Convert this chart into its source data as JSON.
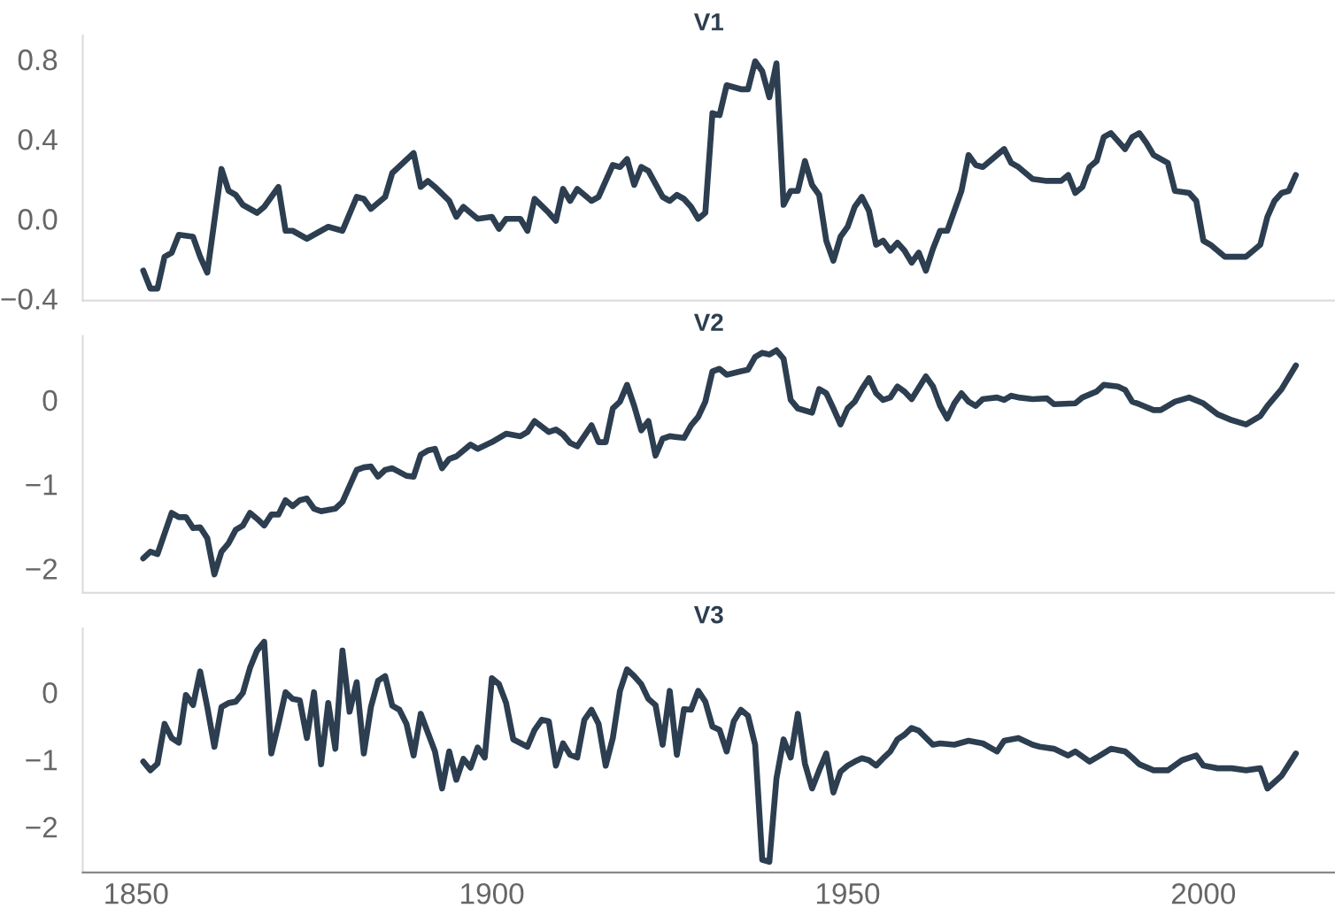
{
  "chart_data": [
    {
      "type": "line",
      "title": "V1",
      "xlim": [
        1842.5,
        2018.5
      ],
      "xticks": [
        1850,
        1900,
        1950,
        2000
      ],
      "ylim": [
        -0.41,
        0.92
      ],
      "yticks": [
        {
          "value": -0.4,
          "label": "−0.4"
        },
        {
          "value": 0,
          "label": "0.0"
        },
        {
          "value": 0.4,
          "label": "0.4"
        },
        {
          "value": 0.8,
          "label": "0.8"
        }
      ],
      "tick_labels": "y",
      "grid": false,
      "x": [
        1851,
        1852,
        1853,
        1854,
        1855,
        1856,
        1858,
        1859,
        1860,
        1862,
        1863,
        1864,
        1865,
        1867,
        1868,
        1870,
        1871,
        1872,
        1874,
        1876,
        1877,
        1879,
        1881,
        1882,
        1883,
        1885,
        1886,
        1889,
        1890,
        1891,
        1892,
        1894,
        1895,
        1896,
        1897,
        1898,
        1900,
        1901,
        1902,
        1904,
        1905,
        1906,
        1908,
        1909,
        1910,
        1911,
        1912,
        1914,
        1915,
        1916,
        1917,
        1918,
        1919,
        1920,
        1921,
        1922,
        1924,
        1925,
        1926,
        1927,
        1928,
        1929,
        1930,
        1931,
        1932,
        1933,
        1935,
        1936,
        1937,
        1938,
        1939,
        1940,
        1941,
        1942,
        1943,
        1944,
        1945,
        1946,
        1947,
        1948,
        1949,
        1950,
        1951,
        1952,
        1953,
        1954,
        1955,
        1956,
        1957,
        1958,
        1959,
        1960,
        1961,
        1962,
        1963,
        1964,
        1966,
        1967,
        1968,
        1969,
        1971,
        1972,
        1973,
        1974,
        1976,
        1978,
        1980,
        1981,
        1982,
        1983,
        1984,
        1985,
        1986,
        1987,
        1988,
        1989,
        1990,
        1991,
        1992,
        1993,
        1995,
        1996,
        1998,
        1999,
        2000,
        2001,
        2003,
        2005,
        2006,
        2008,
        2009,
        2010,
        2011,
        2012,
        2013
      ],
      "series": [
        {
          "color": "#2c3e50",
          "values": [
            -0.26,
            -0.35,
            -0.35,
            -0.19,
            -0.17,
            -0.08,
            -0.09,
            -0.19,
            -0.27,
            0.25,
            0.14,
            0.12,
            0.07,
            0.03,
            0.06,
            0.16,
            -0.06,
            -0.06,
            -0.1,
            -0.06,
            -0.04,
            -0.06,
            0.11,
            0.1,
            0.05,
            0.11,
            0.23,
            0.33,
            0.16,
            0.19,
            0.16,
            0.09,
            0.01,
            0.06,
            0.03,
            0.0,
            0.01,
            -0.05,
            0.0,
            0.0,
            -0.06,
            0.1,
            0.03,
            -0.01,
            0.15,
            0.09,
            0.15,
            0.09,
            0.11,
            0.19,
            0.27,
            0.26,
            0.3,
            0.17,
            0.26,
            0.24,
            0.11,
            0.09,
            0.12,
            0.1,
            0.06,
            0.0,
            0.03,
            0.53,
            0.52,
            0.67,
            0.65,
            0.65,
            0.79,
            0.74,
            0.61,
            0.78,
            0.07,
            0.14,
            0.14,
            0.29,
            0.17,
            0.12,
            -0.11,
            -0.21,
            -0.09,
            -0.04,
            0.06,
            0.11,
            0.04,
            -0.13,
            -0.11,
            -0.16,
            -0.12,
            -0.16,
            -0.22,
            -0.17,
            -0.26,
            -0.15,
            -0.06,
            -0.06,
            0.14,
            0.32,
            0.27,
            0.26,
            0.32,
            0.35,
            0.28,
            0.26,
            0.2,
            0.19,
            0.19,
            0.22,
            0.13,
            0.16,
            0.26,
            0.29,
            0.41,
            0.43,
            0.39,
            0.35,
            0.41,
            0.43,
            0.38,
            0.32,
            0.28,
            0.14,
            0.13,
            0.09,
            -0.11,
            -0.13,
            -0.19,
            -0.19,
            -0.19,
            -0.13,
            0.01,
            0.09,
            0.13,
            0.14,
            0.22
          ]
        }
      ]
    },
    {
      "type": "line",
      "title": "V2",
      "xlim": [
        1842.5,
        2018.5
      ],
      "xticks": [
        1850,
        1900,
        1950,
        2000
      ],
      "ylim": [
        -2.29,
        0.76
      ],
      "yticks": [
        {
          "value": -2,
          "label": "−2"
        },
        {
          "value": -1,
          "label": "−1"
        },
        0
      ],
      "tick_labels": "y",
      "grid": false,
      "x": [
        1851,
        1852,
        1853,
        1855,
        1856,
        1857,
        1858,
        1859,
        1860,
        1861,
        1862,
        1863,
        1864,
        1865,
        1866,
        1867,
        1868,
        1869,
        1870,
        1871,
        1872,
        1873,
        1874,
        1875,
        1876,
        1878,
        1879,
        1881,
        1882,
        1883,
        1884,
        1885,
        1886,
        1888,
        1889,
        1890,
        1891,
        1892,
        1893,
        1894,
        1895,
        1897,
        1898,
        1900,
        1902,
        1904,
        1905,
        1906,
        1908,
        1909,
        1910,
        1911,
        1912,
        1914,
        1915,
        1916,
        1917,
        1918,
        1919,
        1920,
        1921,
        1922,
        1923,
        1924,
        1925,
        1927,
        1928,
        1929,
        1930,
        1931,
        1932,
        1933,
        1935,
        1936,
        1937,
        1938,
        1939,
        1940,
        1941,
        1942,
        1943,
        1945,
        1946,
        1947,
        1948,
        1949,
        1950,
        1951,
        1952,
        1953,
        1954,
        1955,
        1956,
        1957,
        1958,
        1959,
        1961,
        1962,
        1963,
        1964,
        1965,
        1966,
        1967,
        1968,
        1969,
        1971,
        1972,
        1973,
        1974,
        1976,
        1978,
        1979,
        1982,
        1983,
        1985,
        1986,
        1988,
        1989,
        1990,
        1991,
        1993,
        1994,
        1996,
        1998,
        2000,
        2002,
        2004,
        2006,
        2008,
        2009,
        2011,
        2013
      ],
      "series": [
        {
          "color": "#2c3e50",
          "values": [
            -1.88,
            -1.8,
            -1.83,
            -1.34,
            -1.39,
            -1.39,
            -1.52,
            -1.51,
            -1.64,
            -2.07,
            -1.8,
            -1.7,
            -1.54,
            -1.49,
            -1.34,
            -1.41,
            -1.49,
            -1.36,
            -1.36,
            -1.19,
            -1.26,
            -1.19,
            -1.17,
            -1.29,
            -1.32,
            -1.29,
            -1.21,
            -0.83,
            -0.8,
            -0.79,
            -0.91,
            -0.83,
            -0.81,
            -0.9,
            -0.91,
            -0.65,
            -0.6,
            -0.58,
            -0.81,
            -0.7,
            -0.67,
            -0.53,
            -0.58,
            -0.5,
            -0.4,
            -0.43,
            -0.38,
            -0.25,
            -0.38,
            -0.35,
            -0.41,
            -0.51,
            -0.55,
            -0.3,
            -0.5,
            -0.5,
            -0.1,
            -0.02,
            0.18,
            -0.07,
            -0.36,
            -0.25,
            -0.66,
            -0.46,
            -0.43,
            -0.45,
            -0.3,
            -0.2,
            -0.02,
            0.34,
            0.37,
            0.3,
            0.34,
            0.36,
            0.51,
            0.56,
            0.54,
            0.59,
            0.49,
            0.0,
            -0.1,
            -0.15,
            0.13,
            0.08,
            -0.1,
            -0.29,
            -0.1,
            -0.02,
            0.13,
            0.26,
            0.08,
            0.0,
            0.03,
            0.16,
            0.1,
            0.01,
            0.28,
            0.16,
            -0.07,
            -0.22,
            -0.04,
            0.08,
            -0.02,
            -0.07,
            0.01,
            0.03,
            0.0,
            0.05,
            0.03,
            0.01,
            0.02,
            -0.05,
            -0.04,
            0.03,
            0.1,
            0.18,
            0.16,
            0.12,
            -0.02,
            -0.05,
            -0.12,
            -0.12,
            -0.02,
            0.03,
            -0.04,
            -0.17,
            -0.24,
            -0.29,
            -0.19,
            -0.07,
            0.13,
            0.41
          ]
        }
      ]
    },
    {
      "type": "line",
      "title": "V3",
      "xlim": [
        1842.5,
        2018.5
      ],
      "xticks": [
        1850,
        1900,
        1950,
        2000
      ],
      "ylim": [
        -2.68,
        0.95
      ],
      "yticks": [
        {
          "value": -2,
          "label": "−2"
        },
        {
          "value": -1,
          "label": "−1"
        },
        0
      ],
      "grid": false,
      "x": [
        1851,
        1852,
        1853,
        1854,
        1855,
        1856,
        1857,
        1858,
        1859,
        1860,
        1861,
        1862,
        1863,
        1864,
        1865,
        1866,
        1867,
        1868,
        1869,
        1870,
        1871,
        1872,
        1873,
        1874,
        1875,
        1876,
        1877,
        1878,
        1879,
        1880,
        1881,
        1882,
        1883,
        1884,
        1885,
        1886,
        1887,
        1888,
        1889,
        1890,
        1891,
        1892,
        1893,
        1894,
        1895,
        1896,
        1897,
        1898,
        1899,
        1900,
        1901,
        1902,
        1903,
        1905,
        1906,
        1907,
        1908,
        1909,
        1910,
        1911,
        1912,
        1913,
        1914,
        1915,
        1916,
        1917,
        1918,
        1919,
        1920,
        1921,
        1922,
        1923,
        1924,
        1925,
        1926,
        1927,
        1928,
        1929,
        1930,
        1931,
        1932,
        1933,
        1934,
        1935,
        1936,
        1937,
        1938,
        1939,
        1940,
        1941,
        1942,
        1943,
        1944,
        1945,
        1946,
        1947,
        1948,
        1949,
        1950,
        1951,
        1952,
        1953,
        1954,
        1955,
        1956,
        1957,
        1958,
        1959,
        1960,
        1962,
        1963,
        1965,
        1967,
        1969,
        1971,
        1972,
        1974,
        1976,
        1977,
        1979,
        1981,
        1982,
        1984,
        1985,
        1987,
        1989,
        1990,
        1991,
        1993,
        1995,
        1997,
        1999,
        2000,
        2002,
        2004,
        2006,
        2008,
        2009,
        2011,
        2013
      ],
      "series": [
        {
          "color": "#2c3e50",
          "values": [
            -1.03,
            -1.16,
            -1.06,
            -0.47,
            -0.68,
            -0.75,
            -0.04,
            -0.19,
            0.31,
            -0.22,
            -0.81,
            -0.22,
            -0.16,
            -0.14,
            -0.01,
            0.36,
            0.62,
            0.75,
            -0.91,
            -0.47,
            0.0,
            -0.1,
            -0.12,
            -0.68,
            0.0,
            -1.07,
            -0.16,
            -0.84,
            0.62,
            -0.29,
            0.15,
            -0.91,
            -0.22,
            0.17,
            0.24,
            -0.2,
            -0.26,
            -0.47,
            -0.94,
            -0.32,
            -0.6,
            -0.88,
            -1.43,
            -0.88,
            -1.3,
            -0.99,
            -1.12,
            -0.82,
            -0.97,
            0.21,
            0.12,
            -0.16,
            -0.7,
            -0.81,
            -0.56,
            -0.41,
            -0.43,
            -1.09,
            -0.76,
            -0.93,
            -0.97,
            -0.41,
            -0.26,
            -0.47,
            -1.09,
            -0.68,
            0.02,
            0.34,
            0.24,
            0.12,
            -0.1,
            -0.19,
            -0.78,
            0.02,
            -0.93,
            -0.25,
            -0.26,
            0.02,
            -0.14,
            -0.51,
            -0.56,
            -0.88,
            -0.43,
            -0.26,
            -0.35,
            -0.78,
            -2.49,
            -2.52,
            -1.28,
            -0.7,
            -0.97,
            -0.32,
            -1.06,
            -1.43,
            -1.16,
            -0.91,
            -1.49,
            -1.18,
            -1.09,
            -1.03,
            -0.98,
            -1.01,
            -1.09,
            -0.98,
            -0.88,
            -0.7,
            -0.63,
            -0.53,
            -0.57,
            -0.78,
            -0.76,
            -0.78,
            -0.72,
            -0.76,
            -0.88,
            -0.72,
            -0.68,
            -0.78,
            -0.81,
            -0.84,
            -0.94,
            -0.88,
            -1.03,
            -0.97,
            -0.84,
            -0.88,
            -0.97,
            -1.07,
            -1.16,
            -1.16,
            -1.01,
            -0.94,
            -1.09,
            -1.13,
            -1.13,
            -1.16,
            -1.13,
            -1.43,
            -1.24,
            -0.91
          ]
        }
      ]
    }
  ]
}
